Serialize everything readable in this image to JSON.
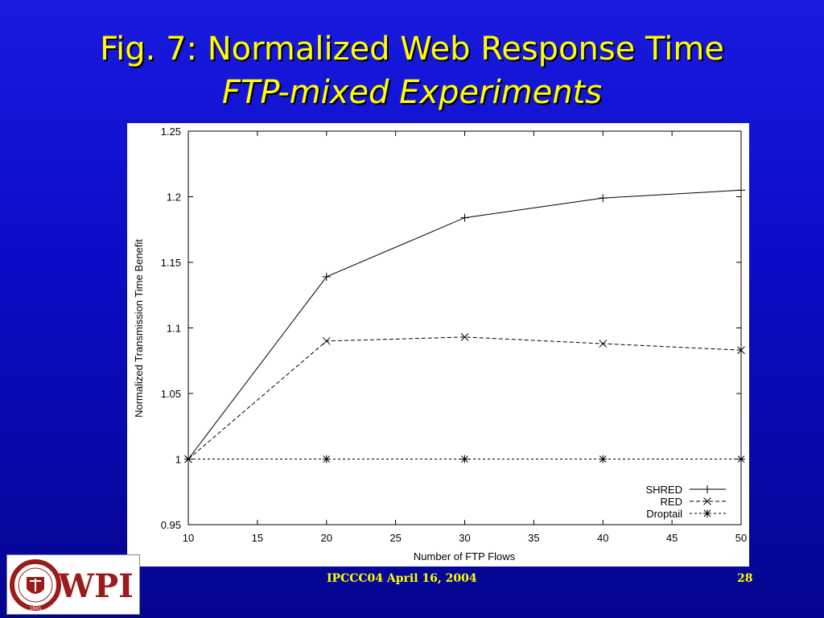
{
  "slide": {
    "title_line1": "Fig. 7: Normalized Web Response Time",
    "title_line2": "FTP-mixed Experiments",
    "footer": "IPCCC04  April 16, 2004",
    "page_number": "28",
    "logo_text": "WPI",
    "logo_ring_text": "WORCESTER POLYTECHNIC INSTITUTE",
    "logo_year": "1865"
  },
  "chart_data": {
    "type": "line",
    "title": "",
    "xlabel": "Number of FTP Flows",
    "ylabel": "Normalized Transmission Time Benefit",
    "xlim": [
      10,
      50
    ],
    "ylim": [
      0.95,
      1.25
    ],
    "xticks": [
      10,
      15,
      20,
      25,
      30,
      35,
      40,
      45,
      50
    ],
    "yticks": [
      0.95,
      1,
      1.05,
      1.1,
      1.15,
      1.2,
      1.25
    ],
    "ytick_labels": [
      "0.95",
      "1",
      "1.05",
      "1.1",
      "1.15",
      "1.2",
      "1.25"
    ],
    "grid": false,
    "legend_position": "bottom-right",
    "x": [
      10,
      20,
      30,
      40,
      50
    ],
    "series": [
      {
        "name": "SHRED",
        "values": [
          1.0,
          1.139,
          1.184,
          1.199,
          1.205
        ],
        "marker": "plus",
        "dash": "solid",
        "color": "#000000"
      },
      {
        "name": "RED",
        "values": [
          1.0,
          1.09,
          1.093,
          1.088,
          1.083
        ],
        "marker": "x",
        "dash": "dashed",
        "color": "#000000"
      },
      {
        "name": "Droptail",
        "values": [
          1.0,
          1.0,
          1.0,
          1.0,
          1.0
        ],
        "marker": "star",
        "dash": "dotted",
        "color": "#000000"
      }
    ]
  }
}
